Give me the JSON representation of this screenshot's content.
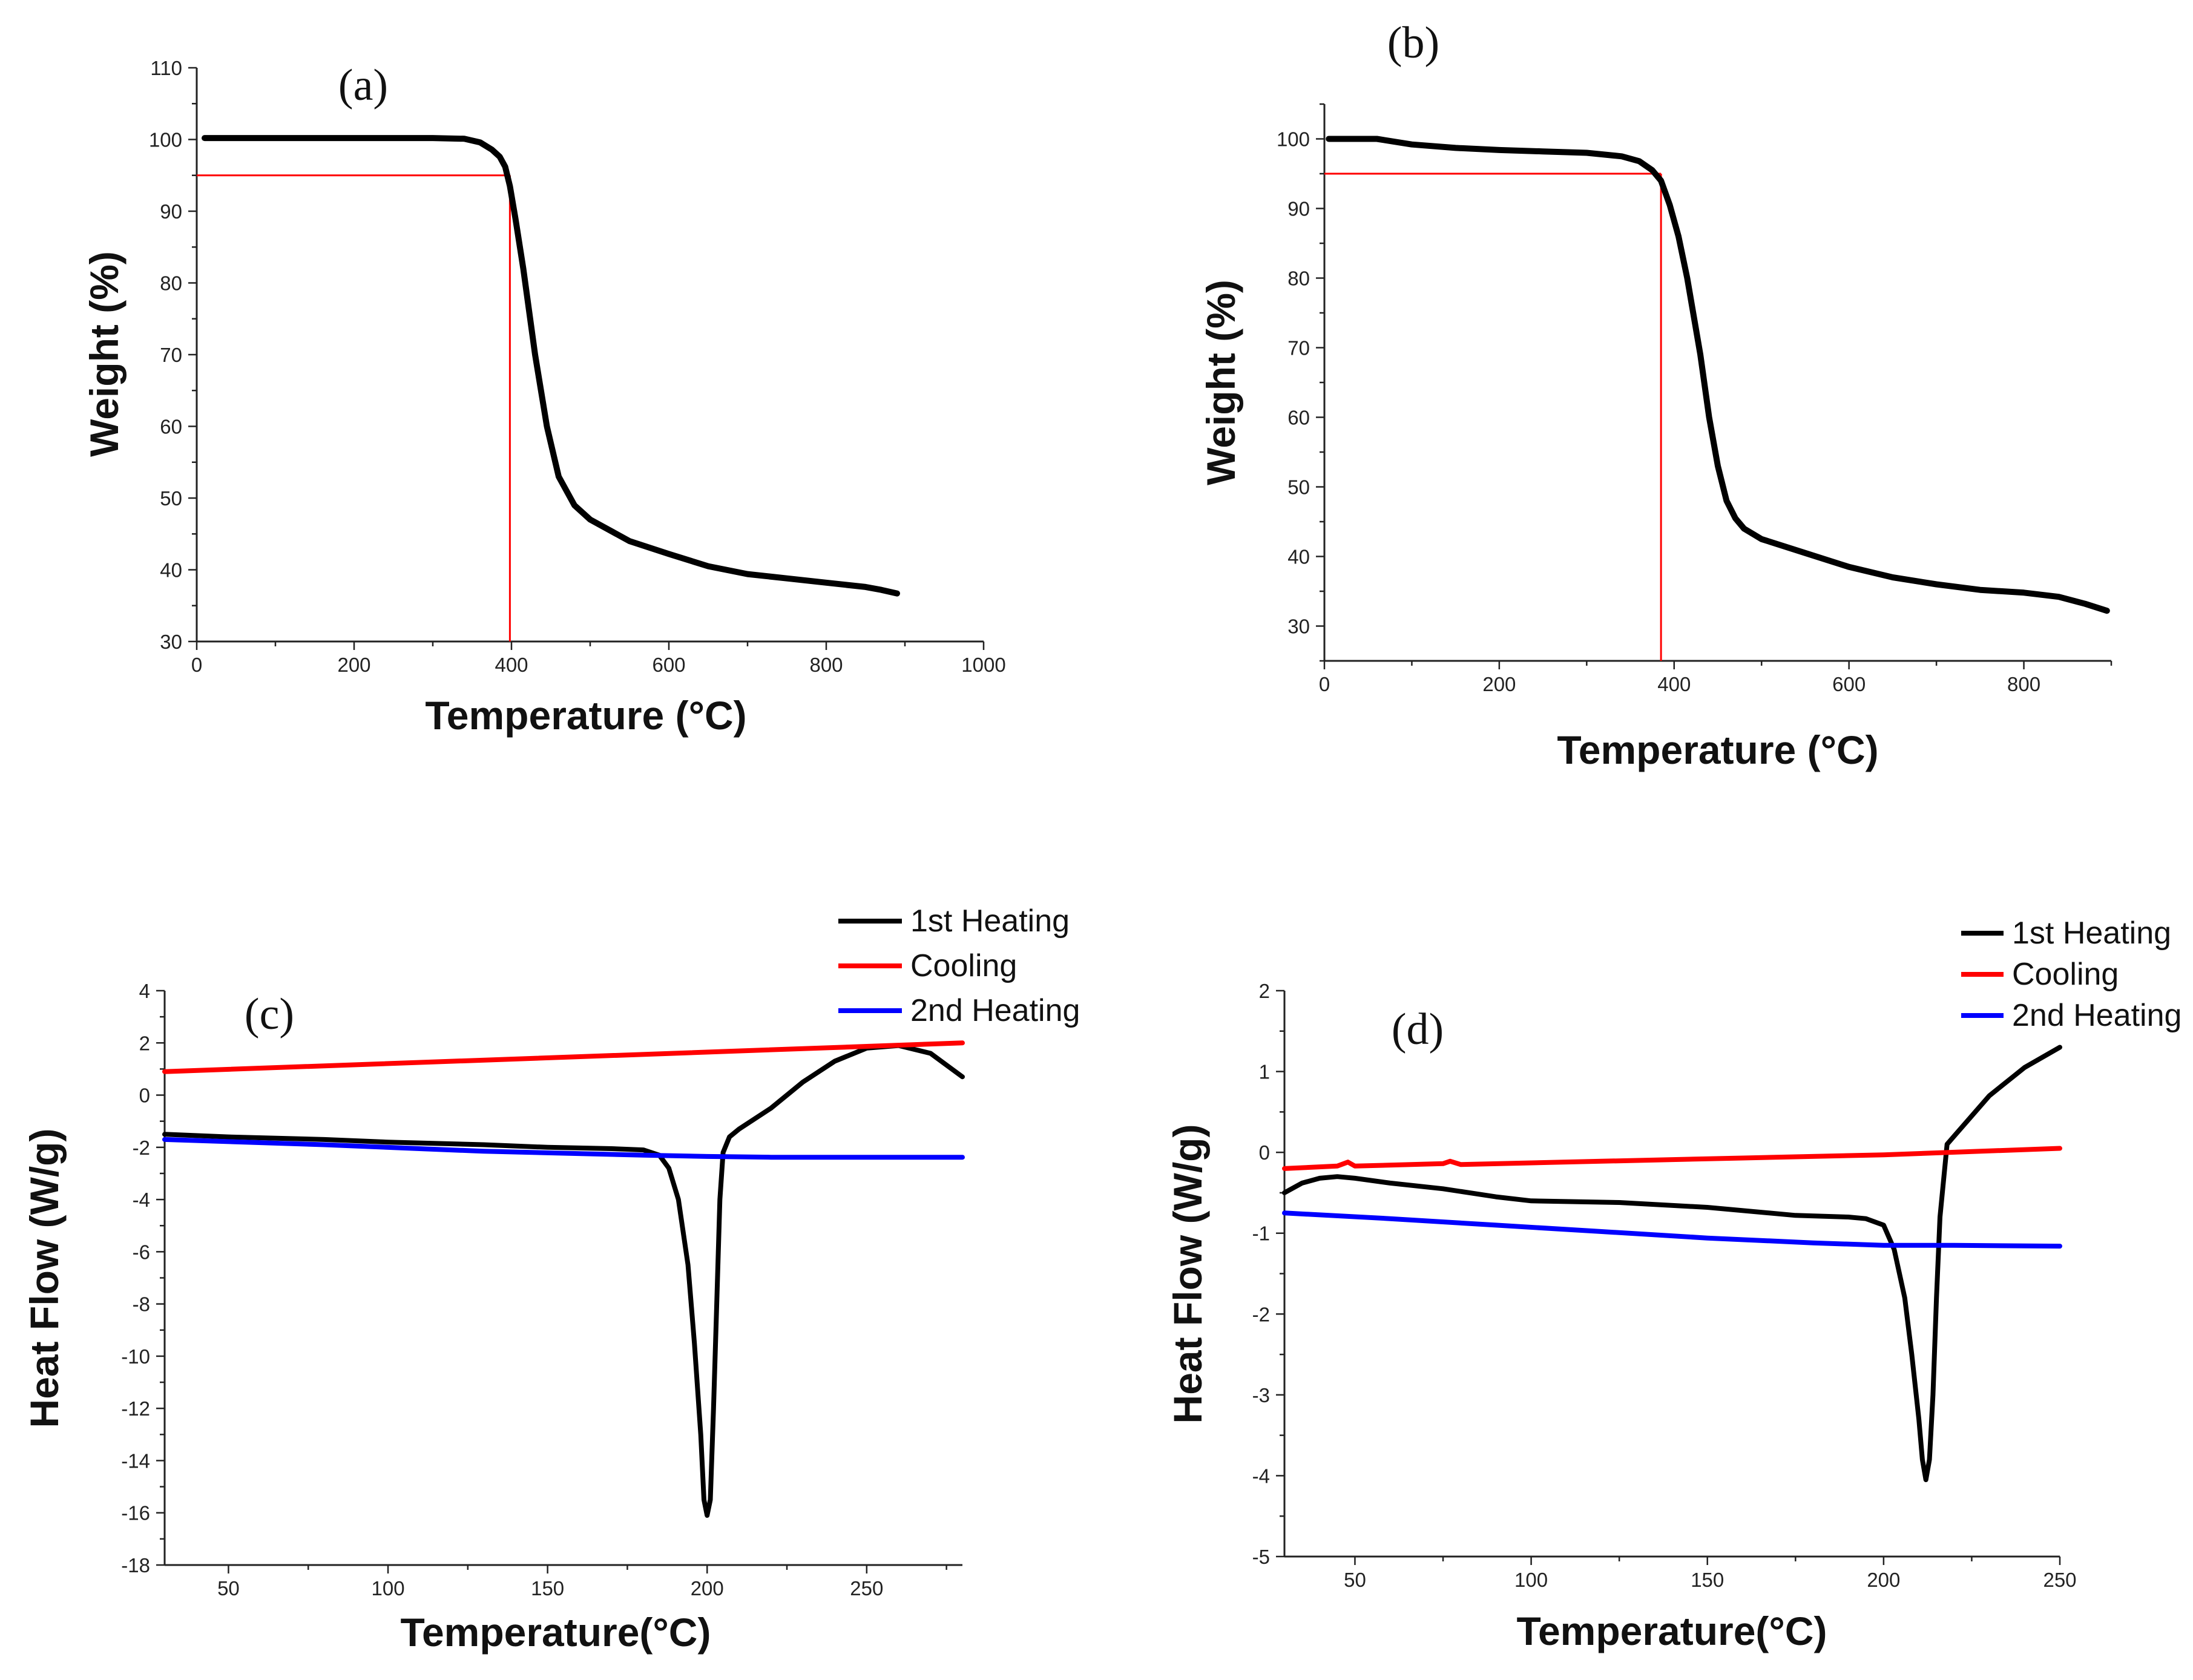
{
  "chart_data": [
    {
      "id": "a",
      "type": "line",
      "panel_label": "(a)",
      "xlabel": "Temperature (°C)",
      "ylabel": "Weight (%)",
      "xlim": [
        0,
        1000
      ],
      "ylim": [
        30,
        110
      ],
      "xticks": [
        "0",
        "200",
        "400",
        "600",
        "800",
        "1000"
      ],
      "yticks": [
        "30",
        "40",
        "50",
        "60",
        "70",
        "80",
        "90",
        "100",
        "110"
      ],
      "xtick_values": [
        0,
        200,
        400,
        600,
        800,
        1000
      ],
      "ytick_values": [
        30,
        40,
        50,
        60,
        70,
        80,
        90,
        100,
        110
      ],
      "grid": false,
      "series": [
        {
          "color": "#000000",
          "x": [
            10,
            100,
            200,
            300,
            340,
            360,
            375,
            385,
            392,
            398,
            405,
            415,
            430,
            445,
            460,
            480,
            500,
            550,
            600,
            650,
            700,
            750,
            800,
            850,
            870,
            890
          ],
          "y": [
            100.2,
            100.2,
            100.2,
            100.2,
            100.1,
            99.6,
            98.6,
            97.6,
            96.2,
            93.5,
            89,
            82,
            70,
            60,
            53,
            49,
            47,
            44,
            42.2,
            40.5,
            39.4,
            38.8,
            38.2,
            37.6,
            37.2,
            36.7
          ]
        }
      ],
      "reference_lines": [
        {
          "color": "#ff0000",
          "x": [
            0,
            398
          ],
          "y": [
            95,
            95
          ]
        },
        {
          "color": "#ff0000",
          "x": [
            398,
            398
          ],
          "y": [
            30,
            95
          ]
        }
      ]
    },
    {
      "id": "b",
      "type": "line",
      "panel_label": "(b)",
      "xlabel": "Temperature (°C)",
      "ylabel": "Weight (%)",
      "xlim": [
        0,
        900
      ],
      "ylim": [
        25,
        105
      ],
      "xticks": [
        "0",
        "200",
        "400",
        "600",
        "800"
      ],
      "yticks": [
        "30",
        "40",
        "50",
        "60",
        "70",
        "80",
        "90",
        "100"
      ],
      "xtick_values": [
        0,
        200,
        400,
        600,
        800
      ],
      "ytick_values": [
        30,
        40,
        50,
        60,
        70,
        80,
        90,
        100
      ],
      "grid": false,
      "series": [
        {
          "color": "#000000",
          "x": [
            5,
            60,
            100,
            150,
            200,
            250,
            300,
            340,
            360,
            375,
            385,
            395,
            405,
            415,
            430,
            440,
            450,
            460,
            470,
            480,
            500,
            550,
            600,
            650,
            700,
            750,
            800,
            840,
            870,
            895
          ],
          "y": [
            100,
            100,
            99.2,
            98.7,
            98.4,
            98.2,
            98,
            97.5,
            96.8,
            95.5,
            94,
            90.5,
            86,
            80,
            69,
            60,
            53,
            48,
            45.5,
            44,
            42.5,
            40.5,
            38.5,
            37,
            36,
            35.2,
            34.8,
            34.2,
            33.2,
            32.2
          ]
        }
      ],
      "reference_lines": [
        {
          "color": "#ff0000",
          "x": [
            0,
            385
          ],
          "y": [
            95,
            95
          ]
        },
        {
          "color": "#ff0000",
          "x": [
            385,
            385
          ],
          "y": [
            25,
            95
          ]
        }
      ]
    },
    {
      "id": "c",
      "type": "line",
      "panel_label": "(c)",
      "xlabel": "Temperature(°C)",
      "ylabel": "Heat Flow (W/g)",
      "xlim": [
        30,
        280
      ],
      "ylim": [
        -18,
        4
      ],
      "xticks": [
        "50",
        "100",
        "150",
        "200",
        "250"
      ],
      "yticks": [
        "-18",
        "-16",
        "-14",
        "-12",
        "-10",
        "-8",
        "-6",
        "-4",
        "-2",
        "0",
        "2",
        "4"
      ],
      "xtick_values": [
        50,
        100,
        150,
        200,
        250
      ],
      "ytick_values": [
        -18,
        -16,
        -14,
        -12,
        -10,
        -8,
        -6,
        -4,
        -2,
        0,
        2,
        4
      ],
      "grid": false,
      "legend_position": "top-right",
      "series": [
        {
          "name": "1st Heating",
          "color": "#000000",
          "x": [
            30,
            50,
            80,
            100,
            130,
            150,
            170,
            180,
            185,
            188,
            191,
            194,
            196,
            198,
            199,
            200,
            201,
            202,
            203,
            204,
            205,
            207,
            210,
            220,
            230,
            240,
            250,
            260,
            270,
            280
          ],
          "y": [
            -1.5,
            -1.6,
            -1.7,
            -1.8,
            -1.9,
            -2,
            -2.05,
            -2.1,
            -2.3,
            -2.8,
            -4,
            -6.5,
            -9.5,
            -13,
            -15.5,
            -16.1,
            -15.5,
            -12,
            -8,
            -4,
            -2.2,
            -1.6,
            -1.3,
            -0.5,
            0.5,
            1.3,
            1.8,
            1.9,
            1.6,
            0.7
          ]
        },
        {
          "name": "Cooling",
          "color": "#ff0000",
          "x": [
            30,
            280
          ],
          "y": [
            0.9,
            2.0
          ]
        },
        {
          "name": "2nd Heating",
          "color": "#0000ff",
          "x": [
            30,
            80,
            130,
            180,
            200,
            220,
            250,
            280
          ],
          "y": [
            -1.7,
            -1.9,
            -2.15,
            -2.3,
            -2.35,
            -2.38,
            -2.38,
            -2.38
          ]
        }
      ]
    },
    {
      "id": "d",
      "type": "line",
      "panel_label": "(d)",
      "xlabel": "Temperature(°C)",
      "ylabel": "Heat Flow (W/g)",
      "xlim": [
        30,
        250
      ],
      "ylim": [
        -5,
        2
      ],
      "xticks": [
        "50",
        "100",
        "150",
        "200",
        "250"
      ],
      "yticks": [
        "-5",
        "-4",
        "-3",
        "-2",
        "-1",
        "0",
        "1",
        "2"
      ],
      "xtick_values": [
        50,
        100,
        150,
        200,
        250
      ],
      "ytick_values": [
        -5,
        -4,
        -3,
        -2,
        -1,
        0,
        1,
        2
      ],
      "grid": false,
      "legend_position": "top-right",
      "series": [
        {
          "name": "1st Heating",
          "color": "#000000",
          "x": [
            30,
            35,
            40,
            45,
            50,
            60,
            75,
            90,
            100,
            125,
            150,
            175,
            190,
            195,
            200,
            203,
            206,
            208,
            210,
            211,
            212,
            213,
            214,
            215,
            216,
            218,
            220,
            225,
            230,
            240,
            250
          ],
          "y": [
            -0.5,
            -0.38,
            -0.32,
            -0.3,
            -0.32,
            -0.38,
            -0.45,
            -0.55,
            -0.6,
            -0.62,
            -0.68,
            -0.78,
            -0.8,
            -0.82,
            -0.9,
            -1.2,
            -1.8,
            -2.5,
            -3.3,
            -3.8,
            -4.05,
            -3.8,
            -3.0,
            -1.8,
            -0.8,
            0.1,
            0.2,
            0.45,
            0.7,
            1.05,
            1.3
          ]
        },
        {
          "name": "Cooling",
          "color": "#ff0000",
          "x": [
            30,
            45,
            48,
            50,
            75,
            77,
            80,
            120,
            160,
            200,
            250
          ],
          "y": [
            -0.2,
            -0.17,
            -0.12,
            -0.17,
            -0.14,
            -0.11,
            -0.15,
            -0.11,
            -0.07,
            -0.03,
            0.05
          ]
        },
        {
          "name": "2nd Heating",
          "color": "#0000ff",
          "x": [
            30,
            60,
            90,
            120,
            150,
            180,
            200,
            220,
            250
          ],
          "y": [
            -0.75,
            -0.82,
            -0.9,
            -0.98,
            -1.06,
            -1.12,
            -1.15,
            -1.15,
            -1.16
          ]
        }
      ]
    }
  ]
}
